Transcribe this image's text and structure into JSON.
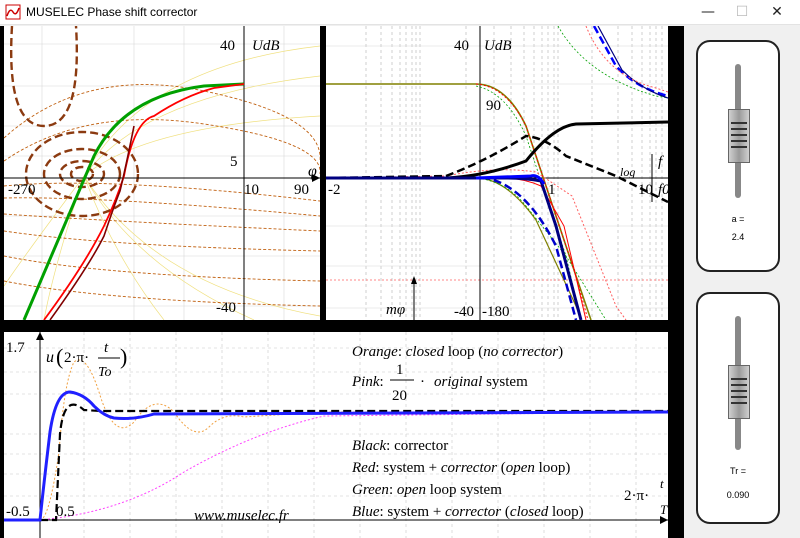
{
  "window": {
    "title": "MUSELEC Phase shift corrector",
    "min_glyph": "—",
    "max_glyph": "☐",
    "close_glyph": "✕"
  },
  "nichols": {
    "y_label": "UdB",
    "x_label": "φ",
    "labels": {
      "y40": "40",
      "y5": "5",
      "ym40": "-40",
      "xm270": "-270",
      "x10": "10",
      "x90": "90"
    }
  },
  "bode": {
    "y_label": "UdB",
    "labels": {
      "y40": "40",
      "y90": "90",
      "m2": "-2",
      "x1": "1",
      "x10": "10",
      "ym40": "-40",
      "ym180": "-180",
      "mphi": "mφ",
      "log": "log",
      "f": "f",
      "f0": "f0"
    }
  },
  "time": {
    "y_max": "1.7",
    "x_start": "-0.5",
    "x_mark": "0.5",
    "x_var": "2·π·",
    "fn_u": "u",
    "fn_open": "(",
    "fn_2pi": "2·π·",
    "fn_t": "t",
    "fn_to": "To",
    "fn_close": ")",
    "x_t": "t",
    "x_T": "T",
    "website": "www.muselec.fr",
    "legend": {
      "orange": {
        "key": "Orange",
        "p1": ": ",
        "i1": "closed",
        "p2": " loop (",
        "i2": "no corrector",
        "p3": ")"
      },
      "pink": {
        "key": "Pink",
        "p1": ": ",
        "num": "1",
        "den": "20",
        "dot": "·",
        "i1": "original",
        "p2": " system"
      },
      "black": {
        "key": "Black",
        "p1": ": corrector"
      },
      "red": {
        "key": "Red",
        "p1": ": system + ",
        "i1": "corrector",
        "p2": " (",
        "i2": "open",
        "p3": " loop)"
      },
      "green": {
        "key": "Green",
        "p1": ": ",
        "i1": "open",
        "p2": " loop system"
      },
      "blue": {
        "key": "Blue",
        "p1": ": system + ",
        "i1": "corrector",
        "p2": " (",
        "i2": "closed",
        "p3": " loop)"
      }
    }
  },
  "sliders": {
    "a": {
      "label": "a =",
      "value": "2.4",
      "level": 0.45
    },
    "Tr": {
      "label": "Tr =",
      "value": "0.090",
      "level": 0.4
    }
  },
  "colors": {
    "orange": "#f0a040",
    "pink": "#ff40ff",
    "black": "#000000",
    "red": "#ff0000",
    "green": "#00a000",
    "blue": "#0000ff",
    "brown": "#b05010"
  }
}
